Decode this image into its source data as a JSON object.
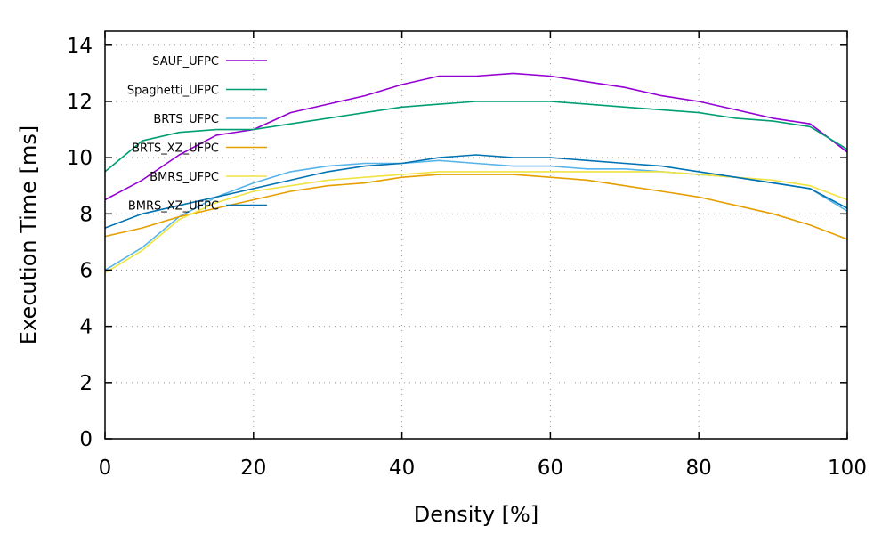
{
  "chart_data": {
    "type": "line",
    "title": "",
    "xlabel": "Density [%]",
    "ylabel": "Execution Time [ms]",
    "xlim": [
      0,
      100
    ],
    "ylim": [
      0,
      14.5
    ],
    "xticks": [
      0,
      20,
      40,
      60,
      80,
      100
    ],
    "xtick_labels": [
      "0",
      "20",
      "40",
      "60",
      "80",
      "100"
    ],
    "yticks": [
      0,
      2,
      4,
      6,
      8,
      10,
      12,
      14
    ],
    "ytick_labels": [
      "0",
      "2",
      "4",
      "6",
      "8",
      "10",
      "12",
      "14"
    ],
    "grid": true,
    "legend_position": "top-left",
    "x": [
      0,
      5,
      10,
      15,
      20,
      25,
      30,
      35,
      40,
      45,
      50,
      55,
      60,
      65,
      70,
      75,
      80,
      85,
      90,
      95,
      100
    ],
    "series": [
      {
        "name": "SAUF_UFPC",
        "color": "#9400d3",
        "values": [
          8.5,
          9.2,
          10.1,
          10.8,
          11.0,
          11.6,
          11.9,
          12.2,
          12.6,
          12.9,
          12.9,
          13.0,
          12.9,
          12.7,
          12.5,
          12.2,
          12.0,
          11.7,
          11.4,
          11.2,
          10.2
        ]
      },
      {
        "name": "Spaghetti_UFPC",
        "color": "#009e73",
        "values": [
          9.5,
          10.6,
          10.9,
          11.0,
          11.0,
          11.2,
          11.4,
          11.6,
          11.8,
          11.9,
          12.0,
          12.0,
          12.0,
          11.9,
          11.8,
          11.7,
          11.6,
          11.4,
          11.3,
          11.1,
          10.3
        ]
      },
      {
        "name": "BRTS_UFPC",
        "color": "#56b4e9",
        "values": [
          6.0,
          6.8,
          7.9,
          8.6,
          9.1,
          9.5,
          9.7,
          9.8,
          9.8,
          9.9,
          9.8,
          9.7,
          9.7,
          9.6,
          9.6,
          9.5,
          9.4,
          9.3,
          9.1,
          8.9,
          8.1
        ]
      },
      {
        "name": "BRTS_XZ_UFPC",
        "color": "#e69f00",
        "values": [
          7.2,
          7.5,
          7.9,
          8.2,
          8.5,
          8.8,
          9.0,
          9.1,
          9.3,
          9.4,
          9.4,
          9.4,
          9.3,
          9.2,
          9.0,
          8.8,
          8.6,
          8.3,
          8.0,
          7.6,
          7.1
        ]
      },
      {
        "name": "BMRS_UFPC",
        "color": "#f0e442",
        "values": [
          5.9,
          6.7,
          7.8,
          8.4,
          8.8,
          9.0,
          9.2,
          9.3,
          9.4,
          9.5,
          9.5,
          9.5,
          9.5,
          9.5,
          9.5,
          9.5,
          9.4,
          9.3,
          9.2,
          9.0,
          8.5
        ]
      },
      {
        "name": "BMRS_XZ_UFPC",
        "color": "#0072b2",
        "values": [
          7.5,
          8.0,
          8.3,
          8.6,
          8.9,
          9.2,
          9.5,
          9.7,
          9.8,
          10.0,
          10.1,
          10.0,
          10.0,
          9.9,
          9.8,
          9.7,
          9.5,
          9.3,
          9.1,
          8.9,
          8.2
        ]
      }
    ]
  }
}
